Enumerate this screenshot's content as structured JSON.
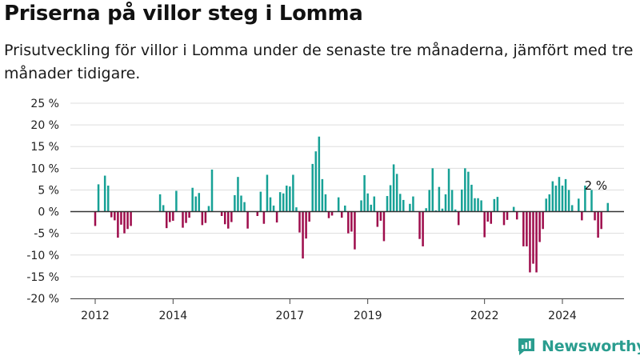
{
  "header": {
    "title": "Priserna på villor steg i Lomma",
    "subtitle": "Prisutveckling för villor i Lomma under de senaste tre månaderna, jämfört med tre månader tidigare."
  },
  "brand": {
    "name": "Newsworthy",
    "icon": "newsworthy-logo-icon"
  },
  "colors": {
    "positive": "#17a196",
    "negative": "#9e0d4c",
    "zero_line": "#333333",
    "grid": "#dddddd"
  },
  "chart_data": {
    "type": "bar",
    "y_unit": "%",
    "ylim": [
      -20,
      25
    ],
    "yticks": [
      25,
      20,
      15,
      10,
      5,
      0,
      -5,
      -10,
      -15,
      -20
    ],
    "ytick_labels": [
      "25 %",
      "20 %",
      "15 %",
      "10 %",
      "5 %",
      "0 %",
      "-5 %",
      "-10 %",
      "-15 %",
      "-20 %"
    ],
    "xticks": [
      {
        "label": "2012",
        "month": "2012-01"
      },
      {
        "label": "2014",
        "month": "2014-01"
      },
      {
        "label": "2017",
        "month": "2017-01"
      },
      {
        "label": "2019",
        "month": "2019-01"
      },
      {
        "label": "2022",
        "month": "2022-01"
      },
      {
        "label": "2024",
        "month": "2024-01"
      }
    ],
    "grid": true,
    "annotation": {
      "label": "2 %",
      "month": "2024-12"
    },
    "series": [
      {
        "start_month": "2012-01",
        "values": [
          -3.3,
          6.3,
          0,
          8.3,
          6,
          -1.3,
          -2,
          -6,
          -3,
          -5,
          -4,
          -3.3,
          0,
          0,
          0,
          0,
          0,
          0,
          0,
          0,
          4,
          1.5,
          -3.8,
          -2.4,
          -2.1,
          4.8,
          0,
          -3.7,
          -2.6,
          -1.4,
          5.5,
          3.5,
          4.3,
          -3.1,
          -2.6,
          1.3,
          9.7,
          0,
          0,
          -1,
          -2.9,
          -3.9,
          -2.4,
          3.8,
          8,
          3.7,
          2.2,
          -3.9,
          0,
          0,
          -1,
          4.6,
          -2.8,
          8.5,
          3.3,
          1.4,
          -2.5,
          4.5,
          4.2,
          6,
          5.8,
          8.5,
          1,
          -4.8,
          -10.8,
          -6.2,
          -2.3,
          11,
          13.9,
          17.3,
          7.5,
          4,
          -1.5,
          -0.9,
          0,
          3.3,
          -1.4,
          1.4,
          -5,
          -4.6,
          -8.7,
          0,
          2.6,
          8.4,
          4.2,
          1.6,
          3.5,
          -3.5,
          -2.1,
          -6.8,
          3.6,
          6.1,
          10.9,
          8.7,
          4.1,
          2.7,
          0,
          1.8,
          3.5,
          0,
          -6.3,
          -8,
          0.8,
          5,
          10,
          0.3,
          5.7,
          0.7,
          4,
          9.9,
          5,
          0.5,
          -3.1,
          5.1,
          10,
          9.2,
          6.2,
          3.1,
          3.1,
          2.6,
          -5.9,
          -2.3,
          -2.8,
          2.9,
          3.4,
          0,
          -3.1,
          -1.9,
          0,
          1.1,
          -1.8,
          0,
          -8,
          -8,
          -14,
          -12,
          -14,
          -7,
          -4,
          3,
          4,
          7,
          6,
          8,
          6,
          7.5,
          5,
          1.5,
          0,
          3,
          -2,
          6,
          0,
          5,
          -2,
          -6,
          -4,
          0,
          2
        ]
      }
    ]
  }
}
